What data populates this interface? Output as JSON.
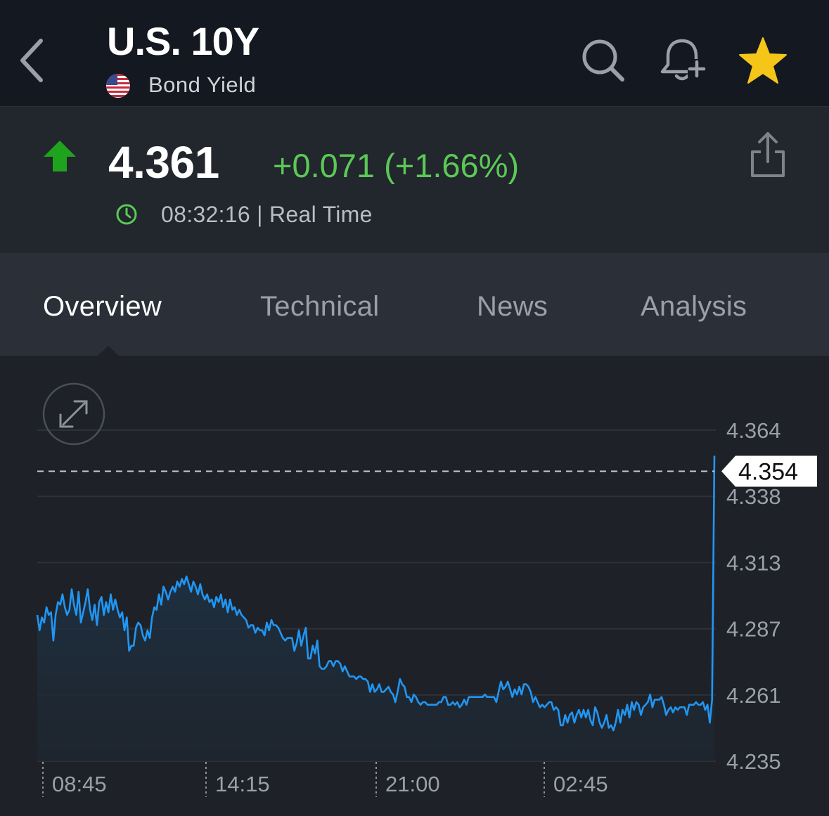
{
  "header": {
    "title": "U.S. 10Y",
    "subtitle": "Bond Yield",
    "back_icon": "chevron-left-icon",
    "search_icon": "search-icon",
    "alert_icon": "bell-plus-icon",
    "favorite_icon": "star-icon",
    "favorite_color": "#f5c518"
  },
  "quote": {
    "price": "4.361",
    "change": "+0.071 (+1.66%)",
    "time": "08:32:16",
    "time_label": "| Real Time",
    "up_color": "#1fa31f",
    "change_color": "#5bc956"
  },
  "tabs": [
    {
      "label": "Overview",
      "active": true
    },
    {
      "label": "Technical",
      "active": false
    },
    {
      "label": "News",
      "active": false
    },
    {
      "label": "Analysis",
      "active": false
    }
  ],
  "chart_data": {
    "type": "area",
    "ylim": [
      4.235,
      4.364
    ],
    "y_ticks": [
      "4.364",
      "4.338",
      "4.313",
      "4.287",
      "4.261",
      "4.235"
    ],
    "x_ticks": [
      "08:45",
      "14:15",
      "21:00",
      "02:45"
    ],
    "current_value_label": "4.354",
    "current_value": 4.354,
    "line_color": "#2196f3",
    "grid": true,
    "values": [
      4.292,
      4.286,
      4.291,
      4.289,
      4.295,
      4.292,
      4.293,
      4.282,
      4.292,
      4.297,
      4.296,
      4.3,
      4.295,
      4.292,
      4.294,
      4.302,
      4.296,
      4.292,
      4.301,
      4.289,
      4.293,
      4.297,
      4.302,
      4.294,
      4.29,
      4.296,
      4.288,
      4.297,
      4.299,
      4.292,
      4.297,
      4.293,
      4.3,
      4.294,
      4.298,
      4.294,
      4.291,
      4.293,
      4.286,
      4.291,
      4.278,
      4.28,
      4.28,
      4.287,
      4.289,
      4.288,
      4.284,
      4.282,
      4.286,
      4.283,
      4.291,
      4.295,
      4.294,
      4.3,
      4.296,
      4.303,
      4.301,
      4.298,
      4.301,
      4.303,
      4.301,
      4.305,
      4.303,
      4.306,
      4.304,
      4.307,
      4.304,
      4.301,
      4.305,
      4.303,
      4.3,
      4.304,
      4.3,
      4.298,
      4.3,
      4.297,
      4.298,
      4.295,
      4.299,
      4.297,
      4.3,
      4.295,
      4.298,
      4.293,
      4.298,
      4.294,
      4.295,
      4.292,
      4.294,
      4.292,
      4.291,
      4.29,
      4.287,
      4.288,
      4.288,
      4.285,
      4.287,
      4.286,
      4.286,
      4.284,
      4.289,
      4.286,
      4.29,
      4.288,
      4.288,
      4.287,
      4.285,
      4.283,
      4.282,
      4.283,
      4.283,
      4.283,
      4.278,
      4.281,
      4.286,
      4.28,
      4.284,
      4.287,
      4.275,
      4.275,
      4.28,
      4.277,
      4.282,
      4.272,
      4.271,
      4.271,
      4.272,
      4.274,
      4.274,
      4.272,
      4.274,
      4.274,
      4.273,
      4.27,
      4.272,
      4.27,
      4.268,
      4.268,
      4.268,
      4.267,
      4.268,
      4.268,
      4.267,
      4.267,
      4.266,
      4.262,
      4.265,
      4.262,
      4.263,
      4.265,
      4.262,
      4.262,
      4.263,
      4.264,
      4.262,
      4.261,
      4.258,
      4.262,
      4.267,
      4.265,
      4.264,
      4.26,
      4.26,
      4.258,
      4.261,
      4.26,
      4.258,
      4.257,
      4.258,
      4.258,
      4.257,
      4.257,
      4.257,
      4.257,
      4.257,
      4.258,
      4.258,
      4.26,
      4.26,
      4.257,
      4.257,
      4.258,
      4.257,
      4.258,
      4.256,
      4.257,
      4.259,
      4.257,
      4.26,
      4.26,
      4.26,
      4.26,
      4.26,
      4.26,
      4.26,
      4.261,
      4.26,
      4.26,
      4.26,
      4.26,
      4.258,
      4.262,
      4.266,
      4.263,
      4.264,
      4.266,
      4.263,
      4.26,
      4.263,
      4.261,
      4.264,
      4.261,
      4.265,
      4.265,
      4.264,
      4.262,
      4.258,
      4.26,
      4.258,
      4.256,
      4.257,
      4.256,
      4.257,
      4.258,
      4.258,
      4.255,
      4.256,
      4.255,
      4.249,
      4.249,
      4.253,
      4.25,
      4.253,
      4.254,
      4.25,
      4.253,
      4.255,
      4.252,
      4.255,
      4.252,
      4.255,
      4.251,
      4.249,
      4.256,
      4.254,
      4.25,
      4.248,
      4.25,
      4.253,
      4.248,
      4.249,
      4.247,
      4.25,
      4.255,
      4.25,
      4.255,
      4.253,
      4.257,
      4.252,
      4.258,
      4.255,
      4.258,
      4.257,
      4.253,
      4.256,
      4.257,
      4.258,
      4.261,
      4.256,
      4.259,
      4.259,
      4.259,
      4.26,
      4.257,
      4.253,
      4.255,
      4.256,
      4.254,
      4.256,
      4.255,
      4.256,
      4.256,
      4.256,
      4.253,
      4.257,
      4.257,
      4.257,
      4.258,
      4.257,
      4.257,
      4.258,
      4.255,
      4.257,
      4.25,
      4.259,
      4.354
    ]
  }
}
